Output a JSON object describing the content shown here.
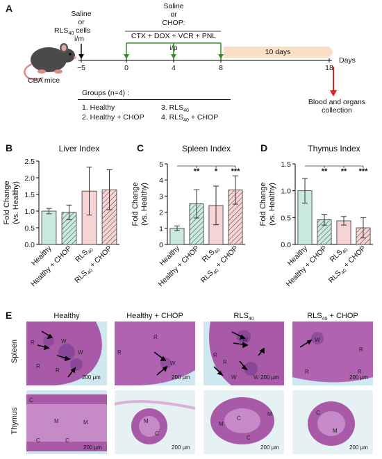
{
  "panel_a": {
    "letter": "A",
    "mouse_label": "CBA mice",
    "injection1": {
      "line1": "Saline",
      "line2": "or",
      "line3_base": "RLS",
      "line3_sub": "40",
      "line3_tail": " cells",
      "route": "i/m"
    },
    "injection2": {
      "line1": "Saline",
      "line2": "or",
      "line3": "CHOP:",
      "drugs": "CTX + DOX + VCR + PNL",
      "route": "i/p"
    },
    "timepoints": [
      "−5",
      "0",
      "4",
      "8",
      "18"
    ],
    "duration_label": "10 days",
    "axis_unit": "Days",
    "endpoint": {
      "line1": "Blood and organs",
      "line2": "collection"
    },
    "groups_title": "Groups (n=4) :",
    "groups": [
      {
        "text": "1. Healthy"
      },
      {
        "text": "2. Healthy + CHOP"
      },
      {
        "base": "3. RLS",
        "sub": "40",
        "tail": ""
      },
      {
        "base": "4. RLS",
        "sub": "40",
        "tail": " + CHOP"
      }
    ]
  },
  "colors": {
    "healthy": "#c9eadc",
    "healthy_chop": "#c9eadc",
    "rls": "#f7d4d4",
    "rls_chop": "#f7d4d4",
    "arrow_green": "#3a8a2c",
    "arrow_red": "#e02020",
    "duration_band": "#f9dfc6"
  },
  "chart_data": [
    {
      "type": "bar",
      "letter": "B",
      "title": "Liver Index",
      "ylabel_line1": "Fold Change",
      "ylabel_line2": "(vs. Healthy)",
      "ylim": [
        0,
        2.5
      ],
      "yticks": [
        "0.0",
        "0.5",
        "1.0",
        "1.5",
        "2.0",
        "2.5"
      ],
      "categories": [
        "Healthy",
        "Healthy + CHOP",
        "RLS40",
        "RLS40 + CHOP"
      ],
      "values": [
        1.0,
        0.96,
        1.6,
        1.64
      ],
      "errors": [
        0.08,
        0.22,
        0.72,
        0.6
      ],
      "significance": []
    },
    {
      "type": "bar",
      "letter": "C",
      "title": "Spleen Index",
      "ylabel_line1": "Fold Change",
      "ylabel_line2": "(vs. Healthy)",
      "ylim": [
        0,
        5
      ],
      "yticks": [
        "0",
        "1",
        "2",
        "3",
        "4",
        "5"
      ],
      "categories": [
        "Healthy",
        "Healthy + CHOP",
        "RLS40",
        "RLS40 + CHOP"
      ],
      "values": [
        1.0,
        2.52,
        2.42,
        3.38
      ],
      "errors": [
        0.15,
        0.88,
        1.2,
        0.88
      ],
      "significance": [
        "**",
        "*",
        "***"
      ]
    },
    {
      "type": "bar",
      "letter": "D",
      "title": "Thymus Index",
      "ylabel_line1": "Fold Change",
      "ylabel_line2": "(vs. Healthy)",
      "ylim": [
        0,
        1.5
      ],
      "yticks": [
        "0.0",
        "0.5",
        "1.0",
        "1.5"
      ],
      "categories": [
        "Healthy",
        "Healthy + CHOP",
        "RLS40",
        "RLS40 + CHOP"
      ],
      "values": [
        1.0,
        0.46,
        0.44,
        0.31
      ],
      "errors": [
        0.23,
        0.1,
        0.08,
        0.19
      ],
      "significance": [
        "**",
        "**",
        "***"
      ]
    }
  ],
  "panel_e": {
    "letter": "E",
    "columns": [
      {
        "base": "Healthy",
        "sub": "",
        "tail": ""
      },
      {
        "base": "Healthy + CHOP",
        "sub": "",
        "tail": ""
      },
      {
        "base": "RLS",
        "sub": "40",
        "tail": ""
      },
      {
        "base": "RLS",
        "sub": "40",
        "tail": " + CHOP"
      }
    ],
    "rows": [
      "Spleen",
      "Thymus"
    ],
    "scale_bar": "200 µm",
    "tissue_letters": {
      "white_pulp": "W",
      "red_pulp": "R",
      "medulla": "M",
      "cortex": "C"
    }
  }
}
